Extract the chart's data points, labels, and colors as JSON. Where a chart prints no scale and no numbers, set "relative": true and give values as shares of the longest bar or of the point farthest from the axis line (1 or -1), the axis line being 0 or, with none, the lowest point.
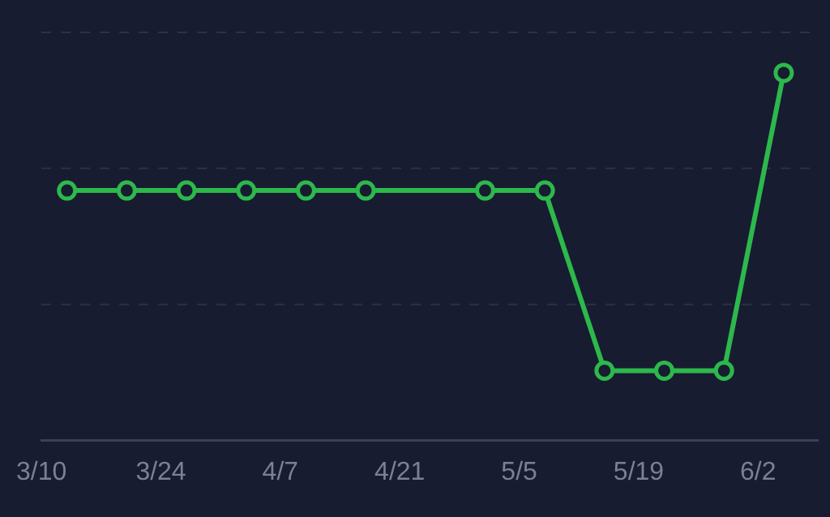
{
  "chart_data": {
    "type": "line",
    "relative": true,
    "x": [
      "--03-13",
      "--03-20",
      "--03-27",
      "--04-03",
      "--04-10",
      "--04-17",
      "--05-01",
      "--05-08",
      "--05-15",
      "--05-22",
      "--05-29",
      "--06-05"
    ],
    "series": [
      {
        "color": "#2db84c",
        "values": [
          0.68,
          0.68,
          0.68,
          0.68,
          0.68,
          0.68,
          0.68,
          0.68,
          0.19,
          0.19,
          0.19,
          1
        ]
      }
    ],
    "xlim": [
      "--03-10",
      "--06-09"
    ],
    "xticks": [
      {
        "value": "--03-10",
        "label": "3/10"
      },
      {
        "value": "--03-24",
        "label": "3/24"
      },
      {
        "value": "--04-07",
        "label": "4/7"
      },
      {
        "value": "--04-21",
        "label": "4/21"
      },
      {
        "value": "--05-05",
        "label": "5/5"
      },
      {
        "value": "--05-19",
        "label": "5/19"
      },
      {
        "value": "--06-02",
        "label": "6/2"
      }
    ],
    "ref_lines": [
      {
        "axis": "y",
        "value": 0.37,
        "color": "#2c3144",
        "line_style": "dashed"
      },
      {
        "axis": "y",
        "value": 0.74,
        "color": "#2c3144",
        "line_style": "dashed"
      },
      {
        "axis": "y",
        "value": 1.11,
        "color": "#2c3144",
        "line_style": "dashed"
      }
    ],
    "legend": false,
    "marker": "circle",
    "line_style": "solid"
  }
}
